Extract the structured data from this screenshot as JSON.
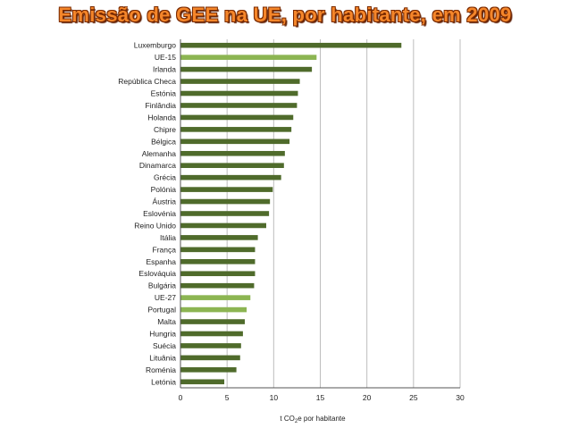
{
  "chart_data": {
    "type": "bar",
    "orientation": "horizontal",
    "title": "Emissão de GEE na UE, por habitante, em 2009",
    "xlabel": "t CO2e por habitante",
    "xlabel_main": "t CO",
    "xlabel_sub": "2",
    "xlabel_rest": "e por habitante",
    "xlim": [
      0,
      30
    ],
    "xticks": [
      "0",
      "5",
      "10",
      "15",
      "20",
      "25",
      "30"
    ],
    "grid": "vertical",
    "colors": {
      "default": "#4f6b2b",
      "highlight": "#8cb552"
    },
    "categories": [
      "Luxemburgo",
      "UE-15",
      "Irlanda",
      "República Checa",
      "Estónia",
      "Finlândia",
      "Holanda",
      "Chipre",
      "Bélgica",
      "Alemanha",
      "Dinamarca",
      "Grécia",
      "Polónia",
      "Áustria",
      "Eslovénia",
      "Reino Unido",
      "Itália",
      "França",
      "Espanha",
      "Eslováquia",
      "Bulgária",
      "UE-27",
      "Portugal",
      "Malta",
      "Hungria",
      "Suécia",
      "Lituânia",
      "Roménia",
      "Letónia"
    ],
    "values": [
      23.7,
      14.6,
      14.1,
      12.8,
      12.6,
      12.5,
      12.1,
      11.9,
      11.7,
      11.2,
      11.1,
      10.8,
      9.9,
      9.6,
      9.5,
      9.2,
      8.3,
      8.0,
      8.0,
      8.0,
      7.9,
      7.5,
      7.1,
      6.9,
      6.7,
      6.5,
      6.4,
      6.0,
      4.7
    ],
    "highlight": [
      false,
      true,
      false,
      false,
      false,
      false,
      false,
      false,
      false,
      false,
      false,
      false,
      false,
      false,
      false,
      false,
      false,
      false,
      false,
      false,
      false,
      true,
      true,
      false,
      false,
      false,
      false,
      false,
      false
    ]
  }
}
